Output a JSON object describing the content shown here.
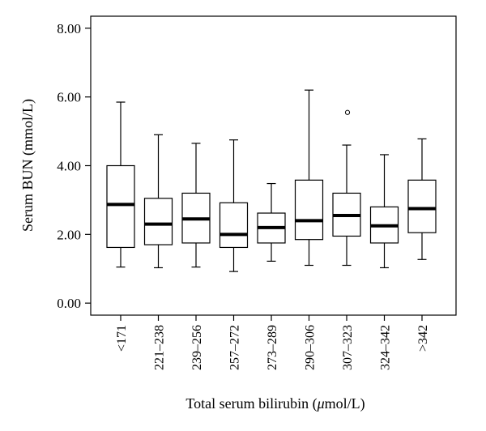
{
  "chart_data": {
    "type": "box",
    "title": "",
    "xlabel": "Total serum bilirubin (μmol/L)",
    "xlabel_parts": {
      "prefix": "Total serum bilirubin (",
      "mu": "μ",
      "suffix": "mol/L)"
    },
    "ylabel": "Serum BUN (mmol/L)",
    "ylim": [
      -0.35,
      8.35
    ],
    "yticks": [
      0,
      2,
      4,
      6,
      8
    ],
    "ytick_labels": [
      "0.00",
      "2.00",
      "4.00",
      "6.00",
      "8.00"
    ],
    "grid": false,
    "categories": [
      "<171",
      "221–238",
      "239–256",
      "257–272",
      "273–289",
      "290–306",
      "307–323",
      "324–342",
      ">342"
    ],
    "boxes": [
      {
        "category": "<171",
        "whisker_low": 1.05,
        "q1": 1.62,
        "median": 2.87,
        "q3": 4.0,
        "whisker_high": 5.85,
        "outliers": []
      },
      {
        "category": "221–238",
        "whisker_low": 1.03,
        "q1": 1.7,
        "median": 2.3,
        "q3": 3.05,
        "whisker_high": 4.9,
        "outliers": []
      },
      {
        "category": "239–256",
        "whisker_low": 1.05,
        "q1": 1.75,
        "median": 2.45,
        "q3": 3.2,
        "whisker_high": 4.65,
        "outliers": []
      },
      {
        "category": "257–272",
        "whisker_low": 0.92,
        "q1": 1.62,
        "median": 2.0,
        "q3": 2.92,
        "whisker_high": 4.75,
        "outliers": []
      },
      {
        "category": "273–289",
        "whisker_low": 1.22,
        "q1": 1.75,
        "median": 2.2,
        "q3": 2.62,
        "whisker_high": 3.48,
        "outliers": []
      },
      {
        "category": "290–306",
        "whisker_low": 1.1,
        "q1": 1.85,
        "median": 2.4,
        "q3": 3.58,
        "whisker_high": 6.2,
        "outliers": []
      },
      {
        "category": "307–323",
        "whisker_low": 1.1,
        "q1": 1.95,
        "median": 2.55,
        "q3": 3.2,
        "whisker_high": 4.6,
        "outliers": [
          5.55
        ]
      },
      {
        "category": "324–342",
        "whisker_low": 1.03,
        "q1": 1.75,
        "median": 2.25,
        "q3": 2.8,
        "whisker_high": 4.32,
        "outliers": []
      },
      {
        "category": ">342",
        "whisker_low": 1.27,
        "q1": 2.05,
        "median": 2.75,
        "q3": 3.58,
        "whisker_high": 4.78,
        "outliers": []
      }
    ]
  }
}
